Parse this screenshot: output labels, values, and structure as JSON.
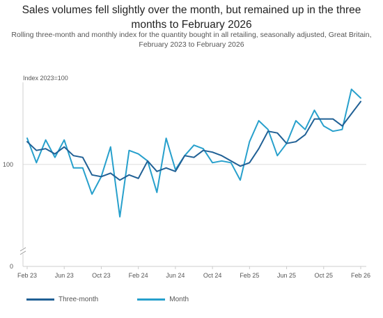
{
  "title": "Sales volumes fell slightly over the month, but remained up in the three months to February 2026",
  "subtitle": "Rolling three-month and monthly index for the quantity bought in all retailing, seasonally adjusted, Great Britain, February 2023 to February 2026",
  "chart_data": {
    "type": "line",
    "ylabel": "Index 2023=100",
    "x": [
      "Feb 23",
      "Mar 23",
      "Apr 23",
      "May 23",
      "Jun 23",
      "Jul 23",
      "Aug 23",
      "Sep 23",
      "Oct 23",
      "Nov 23",
      "Dec 23",
      "Jan 24",
      "Feb 24",
      "Mar 24",
      "Apr 24",
      "May 24",
      "Jun 24",
      "Jul 24",
      "Aug 24",
      "Sep 24",
      "Oct 24",
      "Nov 24",
      "Dec 24",
      "Jan 25",
      "Feb 25",
      "Mar 25",
      "Apr 25",
      "May 25",
      "Jun 25",
      "Jul 25",
      "Aug 25",
      "Sep 25",
      "Oct 25",
      "Nov 25",
      "Dec 25",
      "Jan 26",
      "Feb 26"
    ],
    "x_tick_labels": [
      "Feb 23",
      "Jun 23",
      "Oct 23",
      "Feb 24",
      "Jun 24",
      "Oct 24",
      "Feb 25",
      "Jun 25",
      "Oct 25",
      "Feb 26"
    ],
    "x_tick_indices": [
      0,
      4,
      8,
      12,
      16,
      20,
      24,
      28,
      32,
      36
    ],
    "y_tick_labels": [
      {
        "label": "100",
        "value": 100
      },
      {
        "label": "0",
        "value": 0
      }
    ],
    "axis_break": true,
    "ylim": [
      0,
      106
    ],
    "reference_line": 100,
    "series": [
      {
        "name": "Three-month",
        "color": "#206095",
        "values": [
          101.3,
          100.8,
          100.9,
          100.6,
          101.0,
          100.5,
          100.4,
          99.4,
          99.3,
          99.5,
          99.1,
          99.4,
          99.2,
          100.2,
          99.6,
          99.8,
          99.6,
          100.5,
          100.4,
          100.8,
          100.7,
          100.5,
          100.2,
          99.9,
          100.1,
          100.9,
          101.9,
          101.8,
          101.2,
          101.3,
          101.7,
          102.6,
          102.6,
          102.6,
          102.2,
          102.9,
          103.6
        ],
        "values_display_note": ""
      },
      {
        "name": "Month",
        "color": "#27a0cc",
        "values": [
          101.5,
          100.1,
          101.4,
          100.4,
          101.4,
          99.8,
          99.8,
          98.3,
          99.3,
          101.0,
          97.0,
          100.8,
          100.6,
          100.2,
          98.4,
          101.5,
          99.7,
          100.5,
          101.1,
          100.9,
          100.1,
          100.2,
          100.1,
          99.1,
          101.3,
          102.5,
          102.0,
          100.5,
          101.2,
          102.5,
          102.0,
          103.1,
          102.2,
          101.9,
          102.0,
          104.3,
          103.8
        ]
      }
    ],
    "legend_placement": "bottom-left",
    "grid": false
  }
}
